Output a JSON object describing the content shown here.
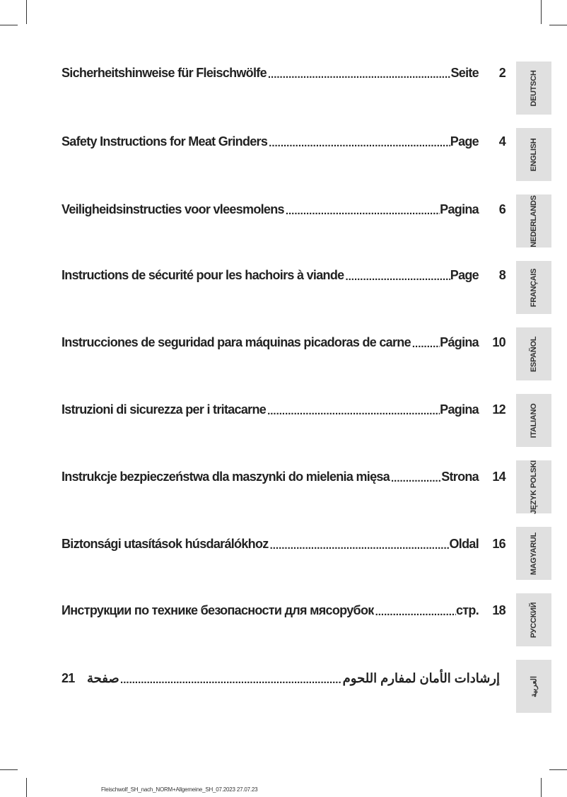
{
  "toc": [
    {
      "title": "Sicherheitshinweise für Fleischwölfe",
      "label": "Seite",
      "page": "2",
      "tab": "DEUTSCH"
    },
    {
      "title": "Safety Instructions for Meat Grinders",
      "label": "Page",
      "page": "4",
      "tab": "ENGLISH"
    },
    {
      "title": "Veiligheidsinstructies voor vleesmolens",
      "label": "Pagina",
      "page": "6",
      "tab": "NEDERLANDS"
    },
    {
      "title": "Instructions de sécurité pour les hachoirs à viande",
      "label": "Page",
      "page": "8",
      "tab": "FRANÇAIS"
    },
    {
      "title": "Instrucciones de seguridad para máquinas picadoras de carne",
      "label": "Página",
      "page": "10",
      "tab": "ESPAÑOL"
    },
    {
      "title": "Istruzioni di sicurezza per i tritacarne",
      "label": "Pagina",
      "page": "12",
      "tab": "ITALIANO"
    },
    {
      "title": "Instrukcje bezpieczeństwa dla maszynki do mielenia mięsa",
      "label": "Strona",
      "page": "14",
      "tab": "JĘZYK POLSKI"
    },
    {
      "title": "Biztonsági utasítások húsdarálókhoz",
      "label": "Oldal",
      "page": "16",
      "tab": "MAGYARUL"
    },
    {
      "title": "Инструкции по технике безопасности для мясорубок",
      "label": "стр.",
      "page": "18",
      "tab": "РУССКИЙ"
    },
    {
      "title": "إرشادات الأمان لمفارم اللحوم",
      "label": "صفحة",
      "page": "21",
      "tab": "العربية"
    }
  ],
  "footer": "Fleischwolf_SH_nach_NORM+Allgemeine_SH_07.2023  27.07.23"
}
